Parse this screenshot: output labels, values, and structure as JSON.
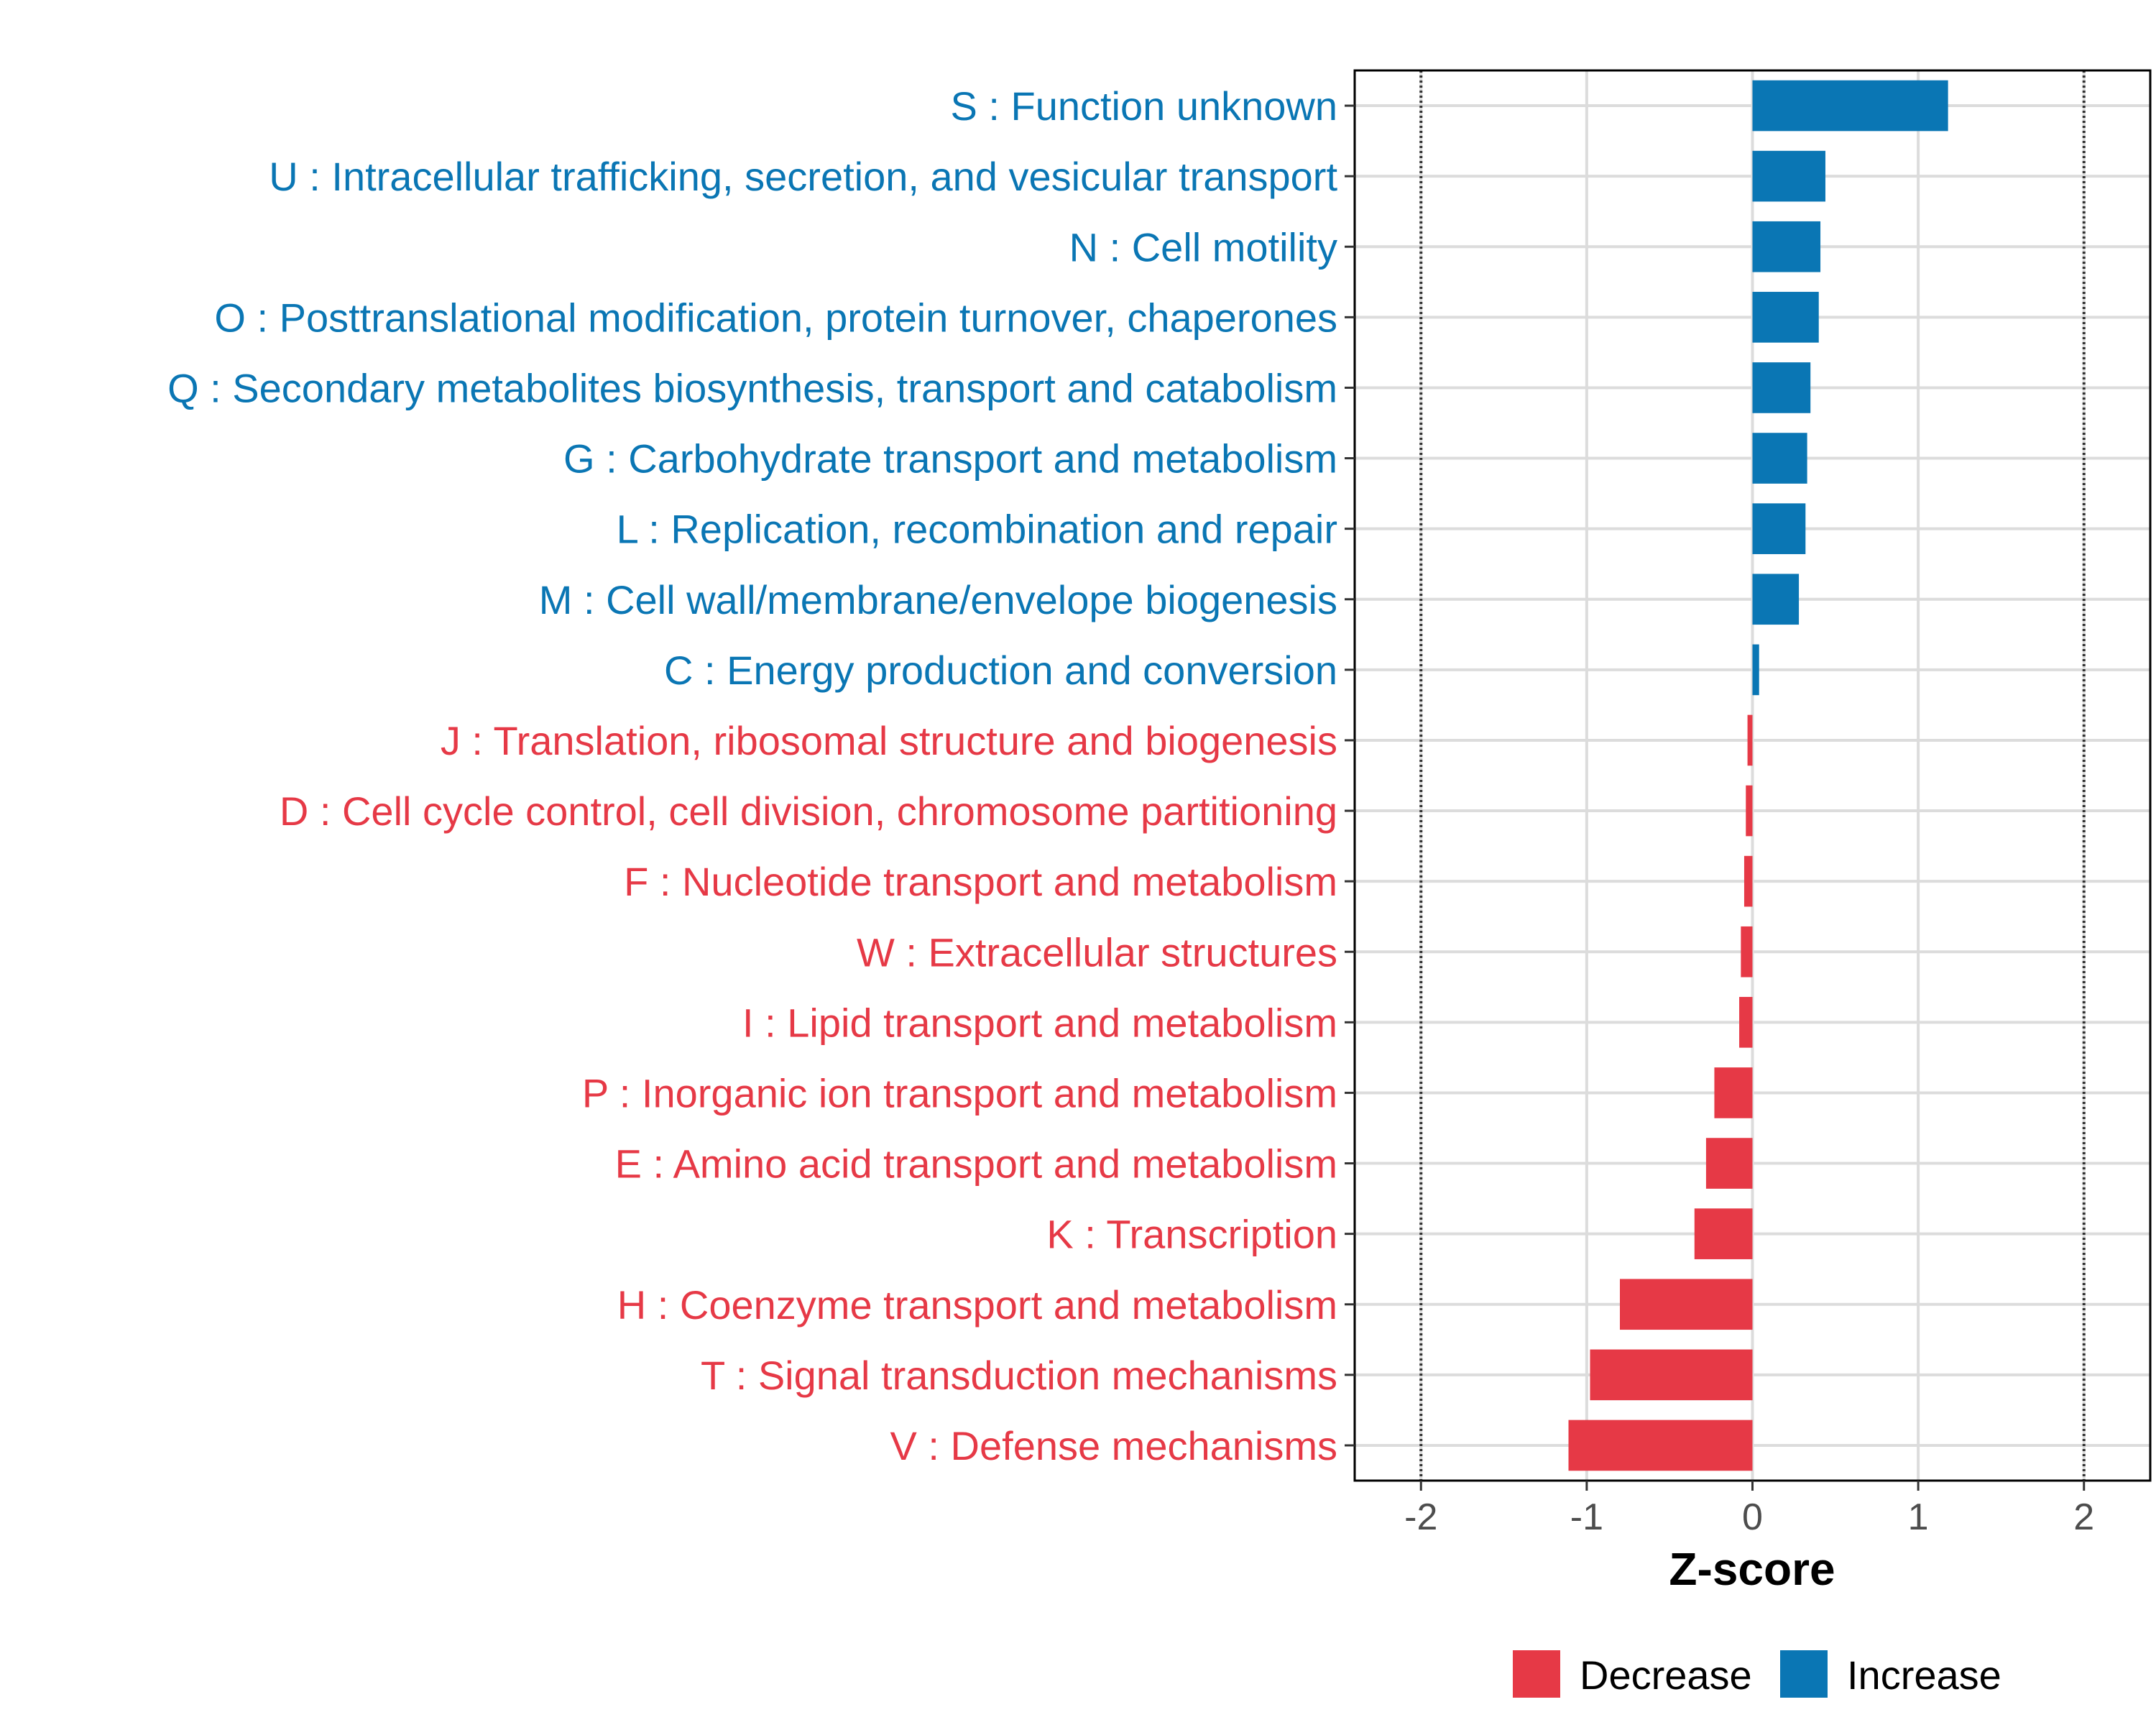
{
  "chart_data": {
    "type": "bar",
    "orientation": "horizontal",
    "title": "",
    "xlabel": "Z-score",
    "ylabel": "",
    "xlim": [
      -2.4,
      2.4
    ],
    "x_ticks": [
      -2,
      -1,
      0,
      1,
      2
    ],
    "x_tick_labels": [
      "-2",
      "-1",
      "0",
      "1",
      "2"
    ],
    "reference_lines": [
      -2,
      2
    ],
    "grid": true,
    "legend_position": "bottom",
    "colors": {
      "Decrease": "#e63946",
      "Increase": "#0a76b4"
    },
    "legend": [
      {
        "name": "Decrease",
        "color": "#e63946"
      },
      {
        "name": "Increase",
        "color": "#0a76b4"
      }
    ],
    "categories": [
      "S : Function unknown",
      "U : Intracellular trafficking, secretion, and vesicular transport",
      "N : Cell motility",
      "O : Posttranslational modification, protein turnover, chaperones",
      "Q : Secondary metabolites biosynthesis, transport and catabolism",
      "G : Carbohydrate transport and metabolism",
      "L : Replication, recombination and repair",
      "M : Cell wall/membrane/envelope biogenesis",
      "C : Energy production and conversion",
      "J : Translation, ribosomal structure and biogenesis",
      "D : Cell cycle control, cell division, chromosome partitioning",
      "F : Nucleotide transport and metabolism",
      "W : Extracellular structures",
      "I : Lipid transport and metabolism",
      "P : Inorganic ion transport and metabolism",
      "E : Amino acid transport and metabolism",
      "K : Transcription",
      "H : Coenzyme transport and metabolism",
      "T : Signal transduction mechanisms",
      "V : Defense mechanisms"
    ],
    "values": [
      1.18,
      0.44,
      0.41,
      0.4,
      0.35,
      0.33,
      0.32,
      0.28,
      0.04,
      -0.03,
      -0.04,
      -0.05,
      -0.07,
      -0.08,
      -0.23,
      -0.28,
      -0.35,
      -0.8,
      -0.98,
      -1.11
    ],
    "groups": [
      "Increase",
      "Increase",
      "Increase",
      "Increase",
      "Increase",
      "Increase",
      "Increase",
      "Increase",
      "Increase",
      "Decrease",
      "Decrease",
      "Decrease",
      "Decrease",
      "Decrease",
      "Decrease",
      "Decrease",
      "Decrease",
      "Decrease",
      "Decrease",
      "Decrease"
    ]
  }
}
